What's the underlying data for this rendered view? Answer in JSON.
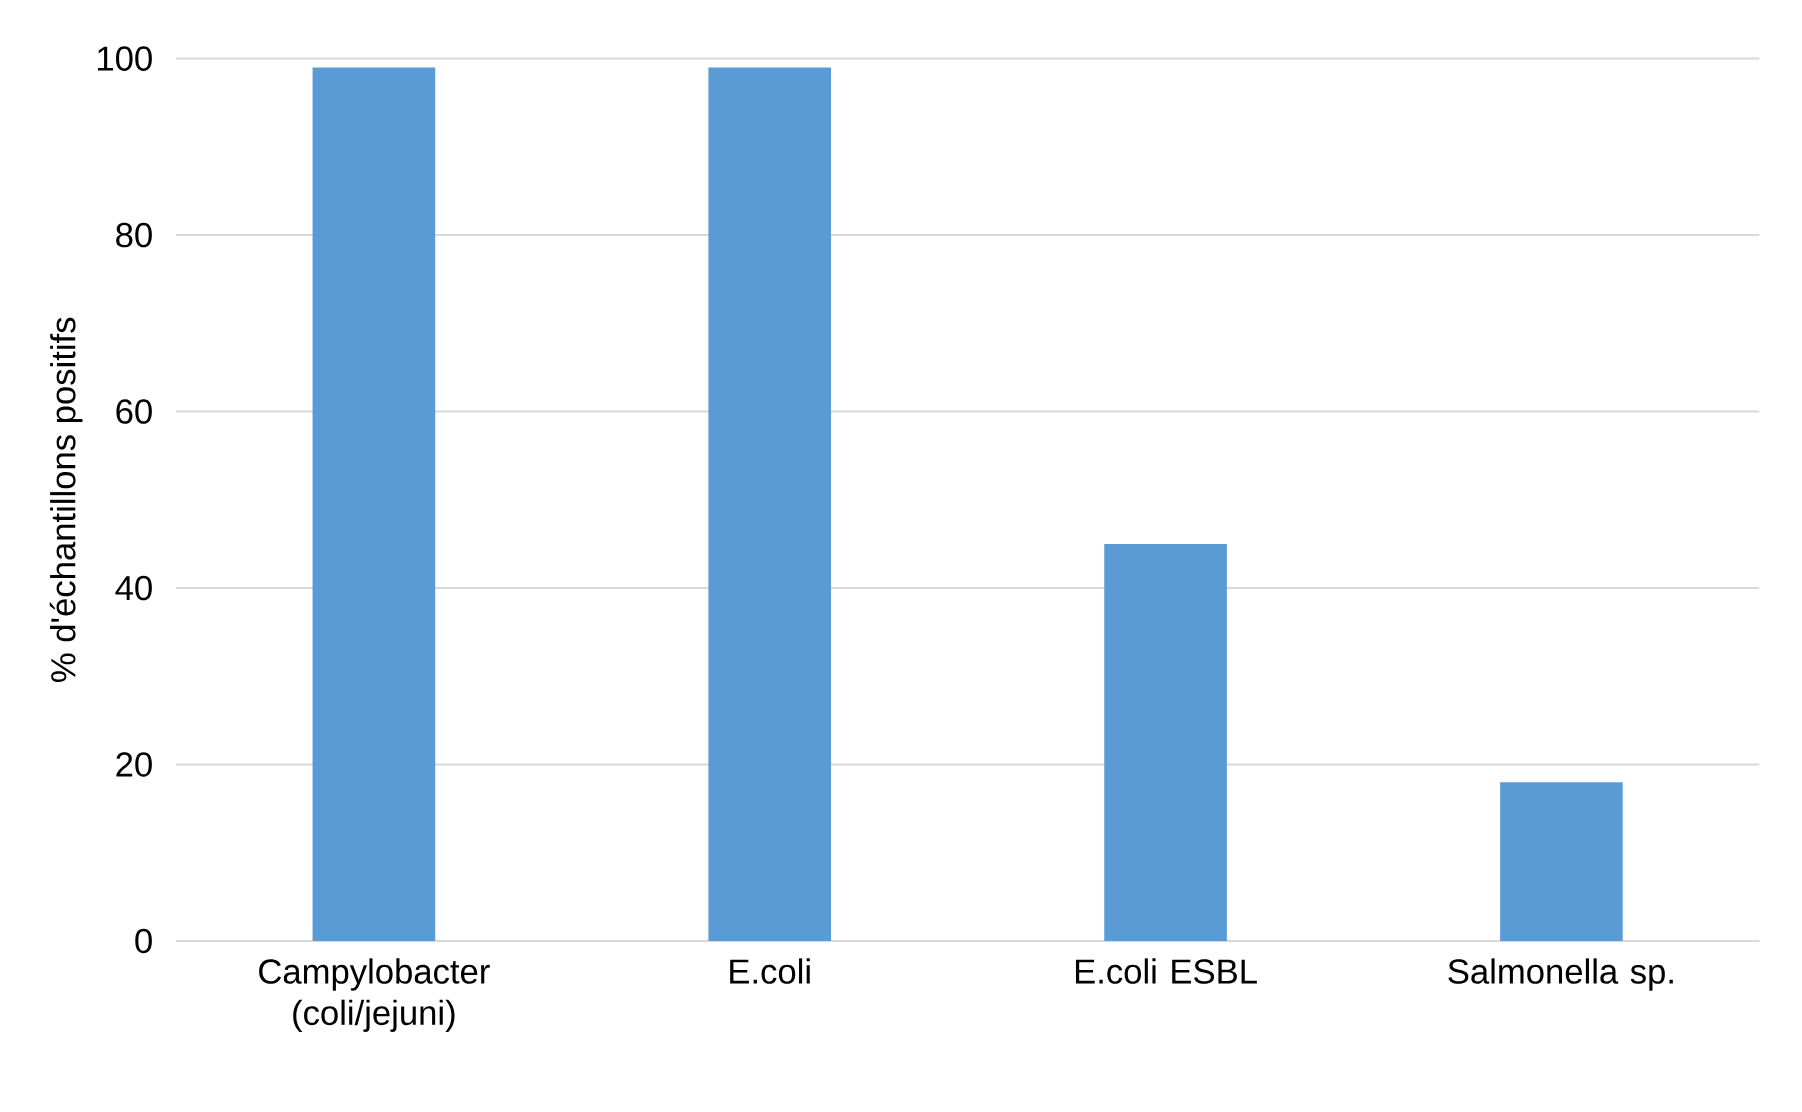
{
  "chart_data": {
    "type": "bar",
    "ylabel": "% d'échantillons  positifs",
    "categories": [
      "Campylobacter (coli/jejuni)",
      "E.coli",
      "E.coli ESBL",
      "Salmonella sp."
    ],
    "values": [
      99,
      99,
      45,
      18
    ],
    "color": "#5b9bd5",
    "ylim": [
      0,
      100
    ],
    "yticks": [
      0,
      20,
      40,
      60,
      80,
      100
    ],
    "grid": "y"
  }
}
